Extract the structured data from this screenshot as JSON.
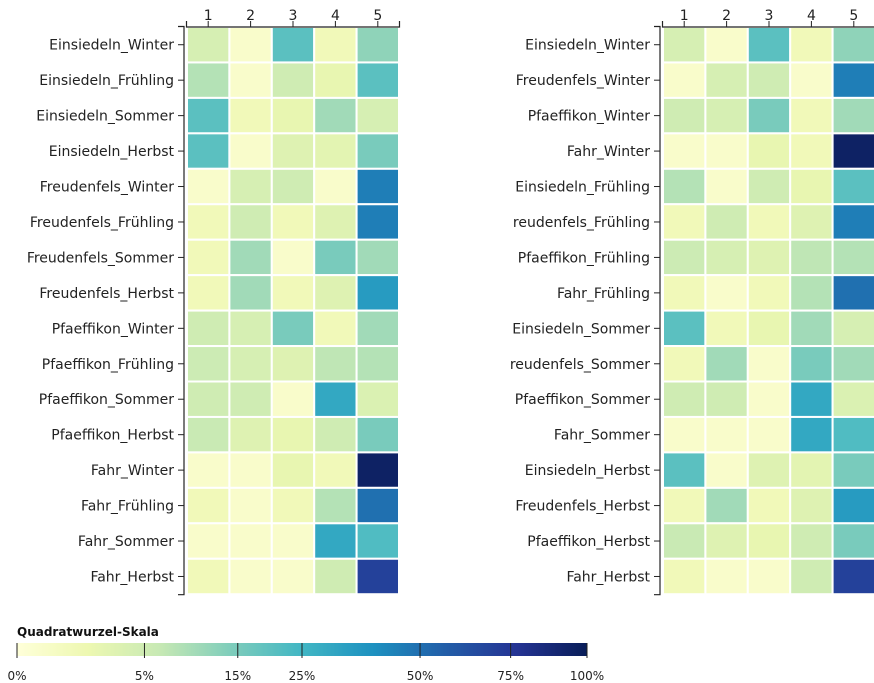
{
  "chart_data": [
    {
      "type": "heatmap",
      "columns": [
        "1",
        "2",
        "3",
        "4",
        "5"
      ],
      "rows": [
        "Einsiedeln_Winter",
        "Einsiedeln_Frühling",
        "Einsiedeln_Sommer",
        "Einsiedeln_Herbst",
        "Freudenfels_Winter",
        "Freudenfels_Frühling",
        "Freudenfels_Sommer",
        "Freudenfels_Herbst",
        "Pfaeffikon_Winter",
        "Pfaeffikon_Frühling",
        "Pfaeffikon_Sommer",
        "Pfaeffikon_Herbst",
        "Fahr_Winter",
        "Fahr_Frühling",
        "Fahr_Sommer",
        "Fahr_Herbst"
      ],
      "values": [
        [
          4,
          0.2,
          20,
          1,
          12
        ],
        [
          8,
          0.2,
          5,
          2,
          20
        ],
        [
          20,
          1,
          2,
          10,
          4
        ],
        [
          20,
          0.2,
          3,
          2.5,
          15
        ],
        [
          0.2,
          4,
          5,
          0.2,
          45
        ],
        [
          1,
          5,
          1,
          3,
          45
        ],
        [
          1,
          10,
          0.2,
          15,
          10
        ],
        [
          1,
          10,
          1,
          3,
          35
        ],
        [
          5,
          4,
          15,
          1,
          10
        ],
        [
          5.5,
          4,
          3,
          7,
          8
        ],
        [
          5,
          5,
          0.2,
          30,
          3.5
        ],
        [
          6,
          3,
          2,
          5,
          15
        ],
        [
          0.2,
          0.2,
          2,
          1,
          95
        ],
        [
          1,
          0.2,
          1,
          8,
          50
        ],
        [
          0.2,
          0.2,
          0.2,
          30,
          22
        ],
        [
          1,
          0.2,
          0.2,
          5,
          70
        ]
      ]
    },
    {
      "type": "heatmap",
      "columns": [
        "1",
        "2",
        "3",
        "4",
        "5"
      ],
      "rows": [
        "Einsiedeln_Winter",
        "Freudenfels_Winter",
        "Pfaeffikon_Winter",
        "Fahr_Winter",
        "Einsiedeln_Frühling",
        "reudenfels_Frühling",
        "Pfaeffikon_Frühling",
        "Fahr_Frühling",
        "Einsiedeln_Sommer",
        "reudenfels_Sommer",
        "Pfaeffikon_Sommer",
        "Fahr_Sommer",
        "Einsiedeln_Herbst",
        "Freudenfels_Herbst",
        "Pfaeffikon_Herbst",
        "Fahr_Herbst"
      ],
      "values": [
        [
          4,
          0.2,
          20,
          1,
          12
        ],
        [
          0.2,
          4,
          5,
          0.2,
          45
        ],
        [
          5,
          4,
          15,
          1,
          10
        ],
        [
          0.2,
          0.2,
          2,
          1,
          95
        ],
        [
          8,
          0.2,
          5,
          2,
          20
        ],
        [
          1,
          5,
          1,
          3,
          45
        ],
        [
          5.5,
          4,
          3,
          7,
          8
        ],
        [
          1,
          0.2,
          1,
          8,
          50
        ],
        [
          20,
          1,
          2,
          10,
          4
        ],
        [
          1,
          10,
          0.2,
          15,
          10
        ],
        [
          5,
          5,
          0.2,
          30,
          3.5
        ],
        [
          0.2,
          0.2,
          0.2,
          30,
          22
        ],
        [
          20,
          0.2,
          3,
          2.5,
          15
        ],
        [
          1,
          10,
          1,
          3,
          35
        ],
        [
          6,
          3,
          2,
          5,
          15
        ],
        [
          1,
          0.2,
          0.2,
          5,
          70
        ]
      ]
    }
  ],
  "legend": {
    "title": "Quadratwurzel-Skala",
    "scale": "sqrt",
    "range": [
      0,
      100
    ],
    "ticks": [
      {
        "value": 0,
        "label": "0%"
      },
      {
        "value": 5,
        "label": "5%"
      },
      {
        "value": 15,
        "label": "15%"
      },
      {
        "value": 25,
        "label": "25%"
      },
      {
        "value": 50,
        "label": "50%"
      },
      {
        "value": 75,
        "label": "75%"
      },
      {
        "value": 100,
        "label": "100%"
      }
    ]
  },
  "colors": [
    "#ffffd9",
    "#edf8b1",
    "#c7e9b4",
    "#7fcdbb",
    "#41b6c4",
    "#1d91c0",
    "#225ea8",
    "#253494",
    "#081d58"
  ]
}
